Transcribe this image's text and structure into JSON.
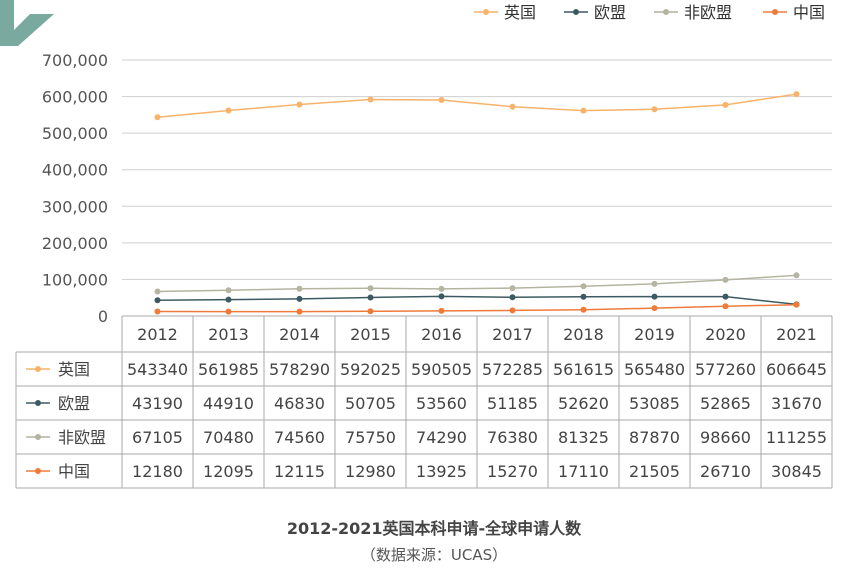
{
  "colors": {
    "uk": "#f7b36b",
    "eu": "#3d5a63",
    "non_eu": "#b4b4a0",
    "china": "#ef7b3b",
    "logo": "#7aa9a0"
  },
  "chart_data": {
    "type": "line",
    "title": "2012-2021英国本科申请-全球申请人数",
    "source": "（数据来源：UCAS）",
    "categories": [
      "2012",
      "2013",
      "2014",
      "2015",
      "2016",
      "2017",
      "2018",
      "2019",
      "2020",
      "2021"
    ],
    "ylim": [
      0,
      700000
    ],
    "yticks": [
      "0",
      "100,000",
      "200,000",
      "300,000",
      "400,000",
      "500,000",
      "600,000",
      "700,000"
    ],
    "grid": true,
    "legend_position": "top-right",
    "series": [
      {
        "name": "英国",
        "color": "#f7b36b",
        "values": [
          543340,
          561985,
          578290,
          592025,
          590505,
          572285,
          561615,
          565480,
          577260,
          606645
        ]
      },
      {
        "name": "欧盟",
        "color": "#3d5a63",
        "values": [
          43190,
          44910,
          46830,
          50705,
          53560,
          51185,
          52620,
          53085,
          52865,
          31670
        ]
      },
      {
        "name": "非欧盟",
        "color": "#b4b4a0",
        "values": [
          67105,
          70480,
          74560,
          75750,
          74290,
          76380,
          81325,
          87870,
          98660,
          111255
        ]
      },
      {
        "name": "中国",
        "color": "#ef7b3b",
        "values": [
          12180,
          12095,
          12115,
          12980,
          13925,
          15270,
          17110,
          21505,
          26710,
          30845
        ]
      }
    ]
  }
}
